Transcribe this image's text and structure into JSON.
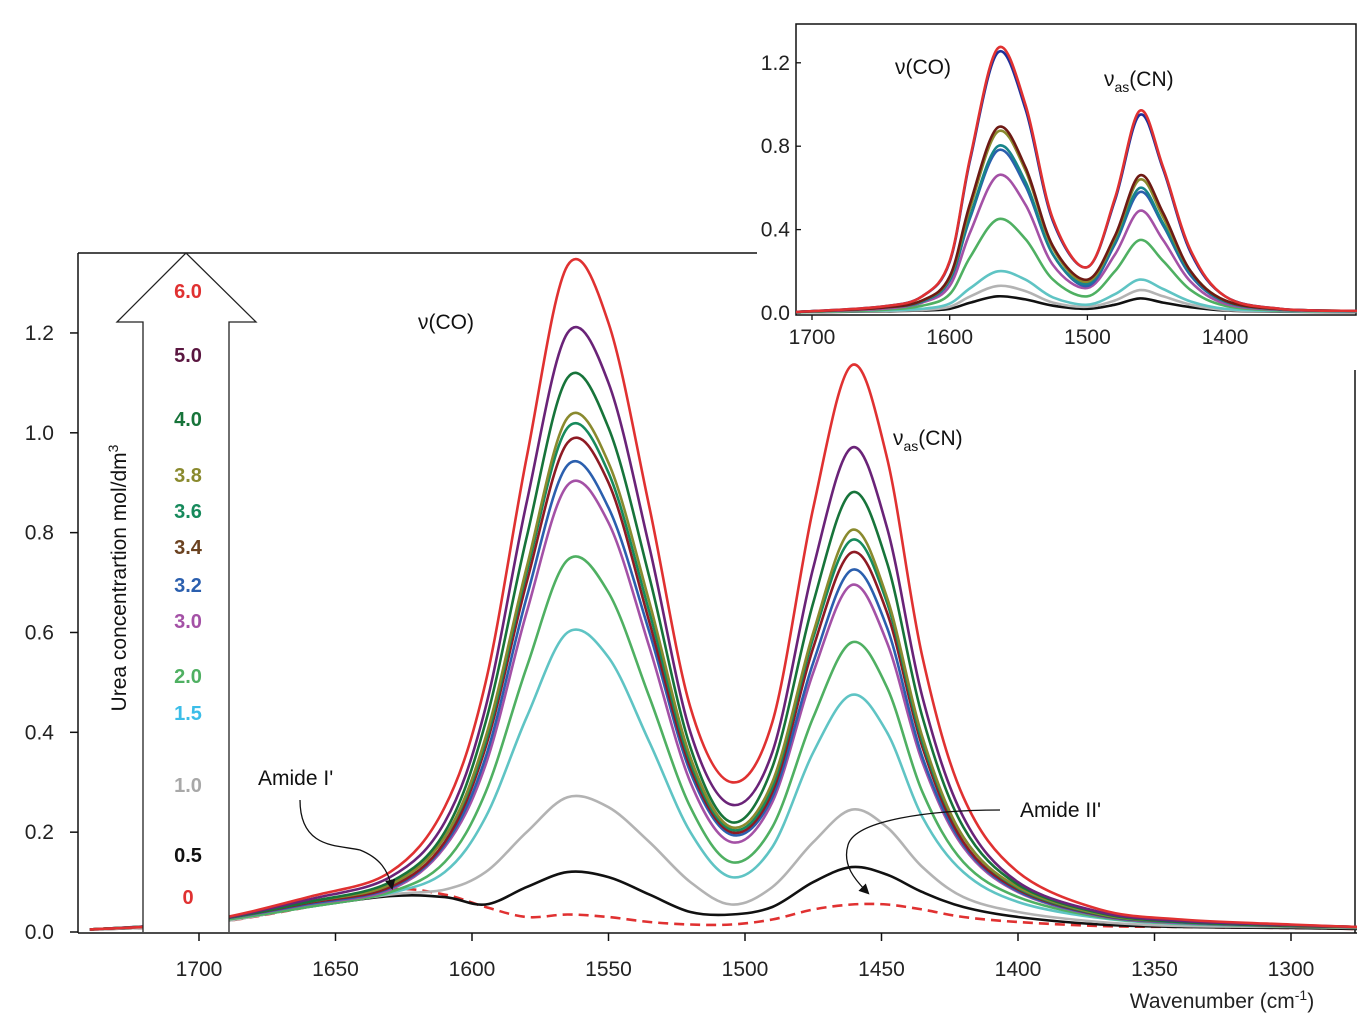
{
  "chart_data": [
    {
      "type": "line",
      "xlabel": "Wavenumber (cm-1)",
      "xlabel_main": "Wavenumber (cm",
      "xlabel_sup": "-1",
      "xlabel_end": ")",
      "ylabel": "",
      "xlim": [
        1744,
        1276
      ],
      "ylim": [
        0,
        1.35
      ],
      "x_reversed": true,
      "grid": false,
      "xticks": [
        1700,
        1650,
        1600,
        1550,
        1500,
        1450,
        1400,
        1350,
        1300
      ],
      "yticks": [
        "0.0",
        "0.2",
        "0.4",
        "0.6",
        "0.8",
        "1.0",
        "1.2"
      ],
      "legend": {
        "title": "Urea concentrartion mol/dm",
        "title_sup": "3",
        "placement": "left (inside arrow)"
      },
      "annotations": {
        "co": "ν(CO)",
        "cn_nu": "ν",
        "cn_sub": "as",
        "cn_rest": "(CN)",
        "amide1": "Amide I'",
        "amide2": "Amide II'"
      },
      "x": [
        1740,
        1700,
        1660,
        1630,
        1610,
        1595,
        1580,
        1565,
        1550,
        1535,
        1520,
        1505,
        1490,
        1475,
        1461,
        1448,
        1435,
        1420,
        1400,
        1370,
        1340,
        1300,
        1275
      ],
      "series": [
        {
          "name": "0",
          "color": "#e03131",
          "dashed": true,
          "values": [
            0.005,
            0.015,
            0.05,
            0.085,
            0.075,
            0.05,
            0.03,
            0.035,
            0.03,
            0.02,
            0.015,
            0.015,
            0.025,
            0.045,
            0.055,
            0.055,
            0.045,
            0.03,
            0.02,
            0.012,
            0.01,
            0.008,
            0.006
          ]
        },
        {
          "name": "0.5",
          "color": "#111111",
          "values": [
            0.005,
            0.015,
            0.05,
            0.072,
            0.07,
            0.055,
            0.09,
            0.12,
            0.11,
            0.075,
            0.04,
            0.035,
            0.05,
            0.1,
            0.13,
            0.115,
            0.08,
            0.05,
            0.03,
            0.015,
            0.01,
            0.008,
            0.006
          ]
        },
        {
          "name": "1.0",
          "color": "#b3b3b3",
          "values": [
            0.005,
            0.015,
            0.05,
            0.075,
            0.085,
            0.12,
            0.2,
            0.27,
            0.25,
            0.18,
            0.1,
            0.055,
            0.09,
            0.18,
            0.245,
            0.21,
            0.13,
            0.07,
            0.04,
            0.02,
            0.012,
            0.01,
            0.008
          ]
        },
        {
          "name": "1.5",
          "color": "#5fc4c4",
          "values": [
            0.005,
            0.018,
            0.05,
            0.078,
            0.12,
            0.23,
            0.43,
            0.6,
            0.55,
            0.38,
            0.2,
            0.11,
            0.17,
            0.36,
            0.475,
            0.4,
            0.23,
            0.12,
            0.06,
            0.028,
            0.016,
            0.011,
            0.009
          ]
        },
        {
          "name": "2.0",
          "color": "#4fb062",
          "values": [
            0.005,
            0.018,
            0.05,
            0.08,
            0.14,
            0.28,
            0.53,
            0.745,
            0.68,
            0.47,
            0.25,
            0.14,
            0.21,
            0.43,
            0.58,
            0.49,
            0.28,
            0.14,
            0.07,
            0.03,
            0.017,
            0.011,
            0.009
          ]
        },
        {
          "name": "3.0",
          "color": "#a451a6",
          "values": [
            0.005,
            0.02,
            0.055,
            0.085,
            0.17,
            0.335,
            0.64,
            0.895,
            0.82,
            0.57,
            0.3,
            0.18,
            0.26,
            0.52,
            0.695,
            0.58,
            0.34,
            0.17,
            0.08,
            0.032,
            0.018,
            0.012,
            0.01
          ]
        },
        {
          "name": "3.2",
          "color": "#2b5fae",
          "values": [
            0.005,
            0.02,
            0.056,
            0.088,
            0.175,
            0.35,
            0.67,
            0.935,
            0.85,
            0.6,
            0.32,
            0.195,
            0.27,
            0.54,
            0.725,
            0.61,
            0.35,
            0.175,
            0.082,
            0.033,
            0.019,
            0.012,
            0.01
          ]
        },
        {
          "name": "3.4",
          "color": "#8e1b24",
          "values": [
            0.005,
            0.02,
            0.058,
            0.09,
            0.18,
            0.37,
            0.7,
            0.98,
            0.9,
            0.62,
            0.33,
            0.2,
            0.28,
            0.57,
            0.76,
            0.64,
            0.37,
            0.18,
            0.085,
            0.034,
            0.02,
            0.012,
            0.01
          ]
        },
        {
          "name": "3.6",
          "color": "#178a5c",
          "values": [
            0.005,
            0.02,
            0.06,
            0.095,
            0.19,
            0.38,
            0.72,
            1.01,
            0.92,
            0.64,
            0.34,
            0.205,
            0.29,
            0.59,
            0.785,
            0.66,
            0.38,
            0.19,
            0.088,
            0.035,
            0.02,
            0.013,
            0.01
          ]
        },
        {
          "name": "3.8",
          "color": "#8a8a2e",
          "values": [
            0.005,
            0.02,
            0.06,
            0.095,
            0.19,
            0.39,
            0.73,
            1.03,
            0.94,
            0.66,
            0.35,
            0.21,
            0.3,
            0.6,
            0.805,
            0.67,
            0.39,
            0.19,
            0.09,
            0.036,
            0.02,
            0.013,
            0.01
          ]
        },
        {
          "name": "4.0",
          "color": "#17743a",
          "values": [
            0.005,
            0.02,
            0.06,
            0.1,
            0.2,
            0.42,
            0.79,
            1.11,
            1.01,
            0.71,
            0.37,
            0.22,
            0.33,
            0.66,
            0.88,
            0.74,
            0.43,
            0.21,
            0.095,
            0.038,
            0.02,
            0.013,
            0.01
          ]
        },
        {
          "name": "5.0",
          "color": "#6a2378",
          "values": [
            0.005,
            0.02,
            0.065,
            0.11,
            0.22,
            0.45,
            0.86,
            1.2,
            1.1,
            0.77,
            0.4,
            0.255,
            0.36,
            0.73,
            0.97,
            0.81,
            0.47,
            0.23,
            0.1,
            0.04,
            0.022,
            0.014,
            0.01
          ]
        },
        {
          "name": "6.0",
          "color": "#e03131",
          "values": [
            0.005,
            0.02,
            0.07,
            0.12,
            0.25,
            0.5,
            0.95,
            1.335,
            1.22,
            0.85,
            0.45,
            0.3,
            0.42,
            0.85,
            1.135,
            0.95,
            0.55,
            0.27,
            0.12,
            0.045,
            0.025,
            0.015,
            0.01
          ]
        }
      ],
      "legend_labels": [
        {
          "text": "6.0",
          "color": "#e03131"
        },
        {
          "text": "5.0",
          "color": "#5a1640"
        },
        {
          "text": "4.0",
          "color": "#17743a"
        },
        {
          "text": "3.8",
          "color": "#8a8a2e"
        },
        {
          "text": "3.6",
          "color": "#178a5c"
        },
        {
          "text": "3.4",
          "color": "#6b4220"
        },
        {
          "text": "3.2",
          "color": "#2b5fae"
        },
        {
          "text": "3.0",
          "color": "#a451a6"
        },
        {
          "text": "2.0",
          "color": "#4fb062"
        },
        {
          "text": "1.5",
          "color": "#3bbde8"
        },
        {
          "text": "1.0",
          "color": "#a8a8a8"
        },
        {
          "text": "0.5",
          "color": "#111111"
        },
        {
          "text": "0",
          "color": "#e03131"
        }
      ]
    },
    {
      "type": "line",
      "title": "",
      "xlim": [
        1712,
        1304
      ],
      "ylim": [
        0,
        1.35
      ],
      "x_reversed": true,
      "xticks": [
        1700,
        1600,
        1500,
        1400
      ],
      "yticks": [
        "0.0",
        "0.4",
        "0.8",
        "1.2"
      ],
      "annotations": {
        "co": "ν(CO)",
        "cn_nu": "ν",
        "cn_sub": "as",
        "cn_rest": "(CN)"
      },
      "x": [
        1712,
        1650,
        1620,
        1600,
        1585,
        1565,
        1545,
        1525,
        1500,
        1480,
        1462,
        1445,
        1425,
        1400,
        1360,
        1304
      ],
      "series": [
        {
          "color": "#111111",
          "values": [
            0.003,
            0.008,
            0.012,
            0.02,
            0.05,
            0.08,
            0.065,
            0.035,
            0.02,
            0.04,
            0.07,
            0.05,
            0.028,
            0.012,
            0.006,
            0.004
          ]
        },
        {
          "color": "#b3b3b3",
          "values": [
            0.003,
            0.01,
            0.015,
            0.03,
            0.08,
            0.13,
            0.105,
            0.05,
            0.03,
            0.06,
            0.11,
            0.08,
            0.04,
            0.015,
            0.008,
            0.005
          ]
        },
        {
          "color": "#5fc4c4",
          "values": [
            0.004,
            0.012,
            0.02,
            0.045,
            0.12,
            0.2,
            0.16,
            0.075,
            0.04,
            0.09,
            0.16,
            0.115,
            0.055,
            0.02,
            0.01,
            0.006
          ]
        },
        {
          "color": "#4fb062",
          "values": [
            0.004,
            0.015,
            0.035,
            0.09,
            0.27,
            0.45,
            0.355,
            0.16,
            0.08,
            0.2,
            0.35,
            0.25,
            0.11,
            0.035,
            0.012,
            0.008
          ]
        },
        {
          "color": "#a451a6",
          "values": [
            0.005,
            0.02,
            0.05,
            0.13,
            0.39,
            0.66,
            0.52,
            0.23,
            0.12,
            0.28,
            0.49,
            0.35,
            0.15,
            0.045,
            0.015,
            0.01
          ]
        },
        {
          "color": "#2b5fae",
          "values": [
            0.005,
            0.025,
            0.055,
            0.155,
            0.46,
            0.78,
            0.61,
            0.28,
            0.13,
            0.33,
            0.58,
            0.42,
            0.18,
            0.055,
            0.017,
            0.01
          ]
        },
        {
          "color": "#17858a",
          "values": [
            0.005,
            0.025,
            0.055,
            0.16,
            0.47,
            0.8,
            0.63,
            0.28,
            0.14,
            0.34,
            0.6,
            0.43,
            0.19,
            0.055,
            0.017,
            0.01
          ]
        },
        {
          "color": "#8a8a2e",
          "values": [
            0.005,
            0.025,
            0.06,
            0.17,
            0.51,
            0.87,
            0.685,
            0.31,
            0.15,
            0.36,
            0.64,
            0.46,
            0.2,
            0.06,
            0.018,
            0.01
          ]
        },
        {
          "color": "#6e1a14",
          "values": [
            0.005,
            0.025,
            0.06,
            0.175,
            0.53,
            0.89,
            0.7,
            0.32,
            0.16,
            0.37,
            0.66,
            0.48,
            0.2,
            0.06,
            0.018,
            0.01
          ]
        },
        {
          "color": "#1f2f9a",
          "values": [
            0.005,
            0.03,
            0.08,
            0.245,
            0.74,
            1.25,
            0.98,
            0.44,
            0.22,
            0.54,
            0.95,
            0.69,
            0.29,
            0.08,
            0.02,
            0.01
          ]
        },
        {
          "color": "#e03131",
          "values": [
            0.005,
            0.03,
            0.08,
            0.25,
            0.75,
            1.27,
            1.0,
            0.45,
            0.22,
            0.55,
            0.97,
            0.7,
            0.3,
            0.08,
            0.02,
            0.01
          ]
        }
      ]
    }
  ]
}
